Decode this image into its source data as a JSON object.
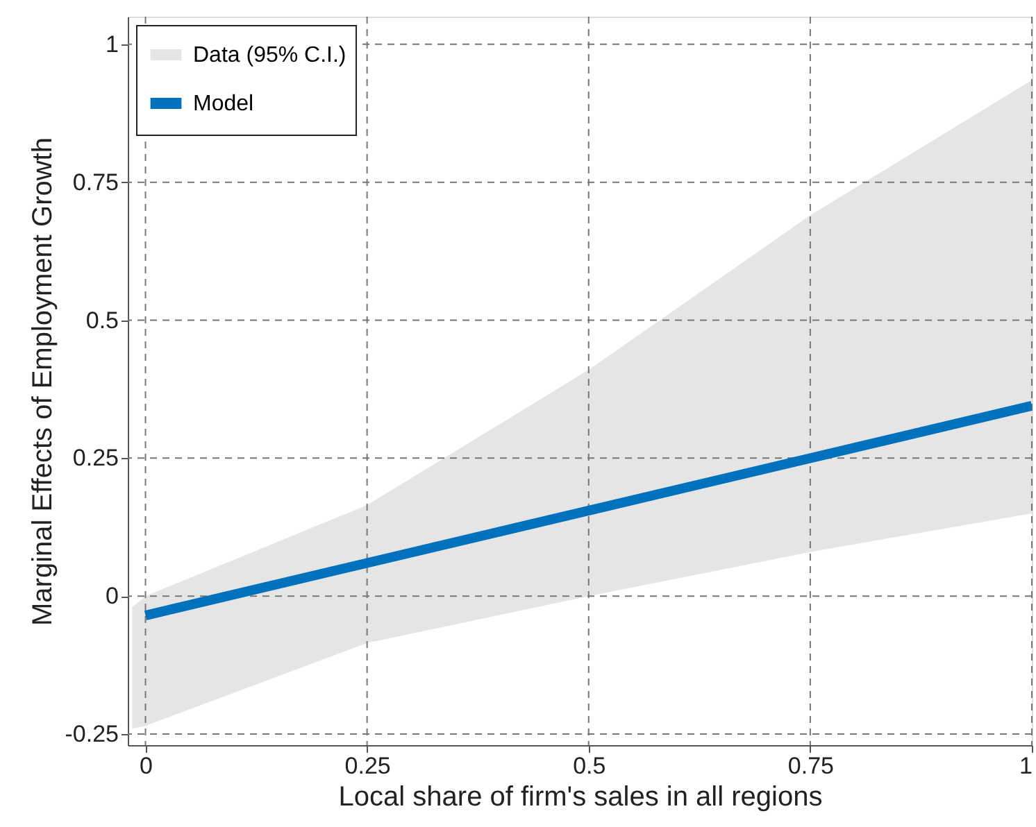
{
  "chart_data": {
    "type": "line",
    "xlabel": "Local share of firm's  sales in all regions",
    "ylabel": "Marginal Effects of Employment Growth",
    "xlim": [
      -0.02,
      1
    ],
    "ylim": [
      -0.27,
      1.05
    ],
    "xticks": [
      0,
      0.25,
      0.5,
      0.75,
      1
    ],
    "yticks": [
      -0.25,
      0,
      0.25,
      0.5,
      0.75,
      1
    ],
    "grid": true,
    "legend": "top left",
    "series": [
      {
        "name": "Data (95% C.I.)",
        "color": "#e5e5e5",
        "x": [
          -0.015,
          0,
          0.25,
          0.5,
          0.75,
          1
        ],
        "values": [
          null,
          null,
          null,
          null,
          null,
          null
        ],
        "lower": [
          -0.24,
          -0.235,
          -0.085,
          0.0,
          0.08,
          0.15
        ],
        "upper": [
          -0.02,
          0.0,
          0.165,
          0.41,
          0.69,
          0.935
        ]
      },
      {
        "name": "Model",
        "color": "#0072bd",
        "x": [
          0,
          1
        ],
        "values": [
          -0.035,
          0.345
        ]
      }
    ]
  }
}
